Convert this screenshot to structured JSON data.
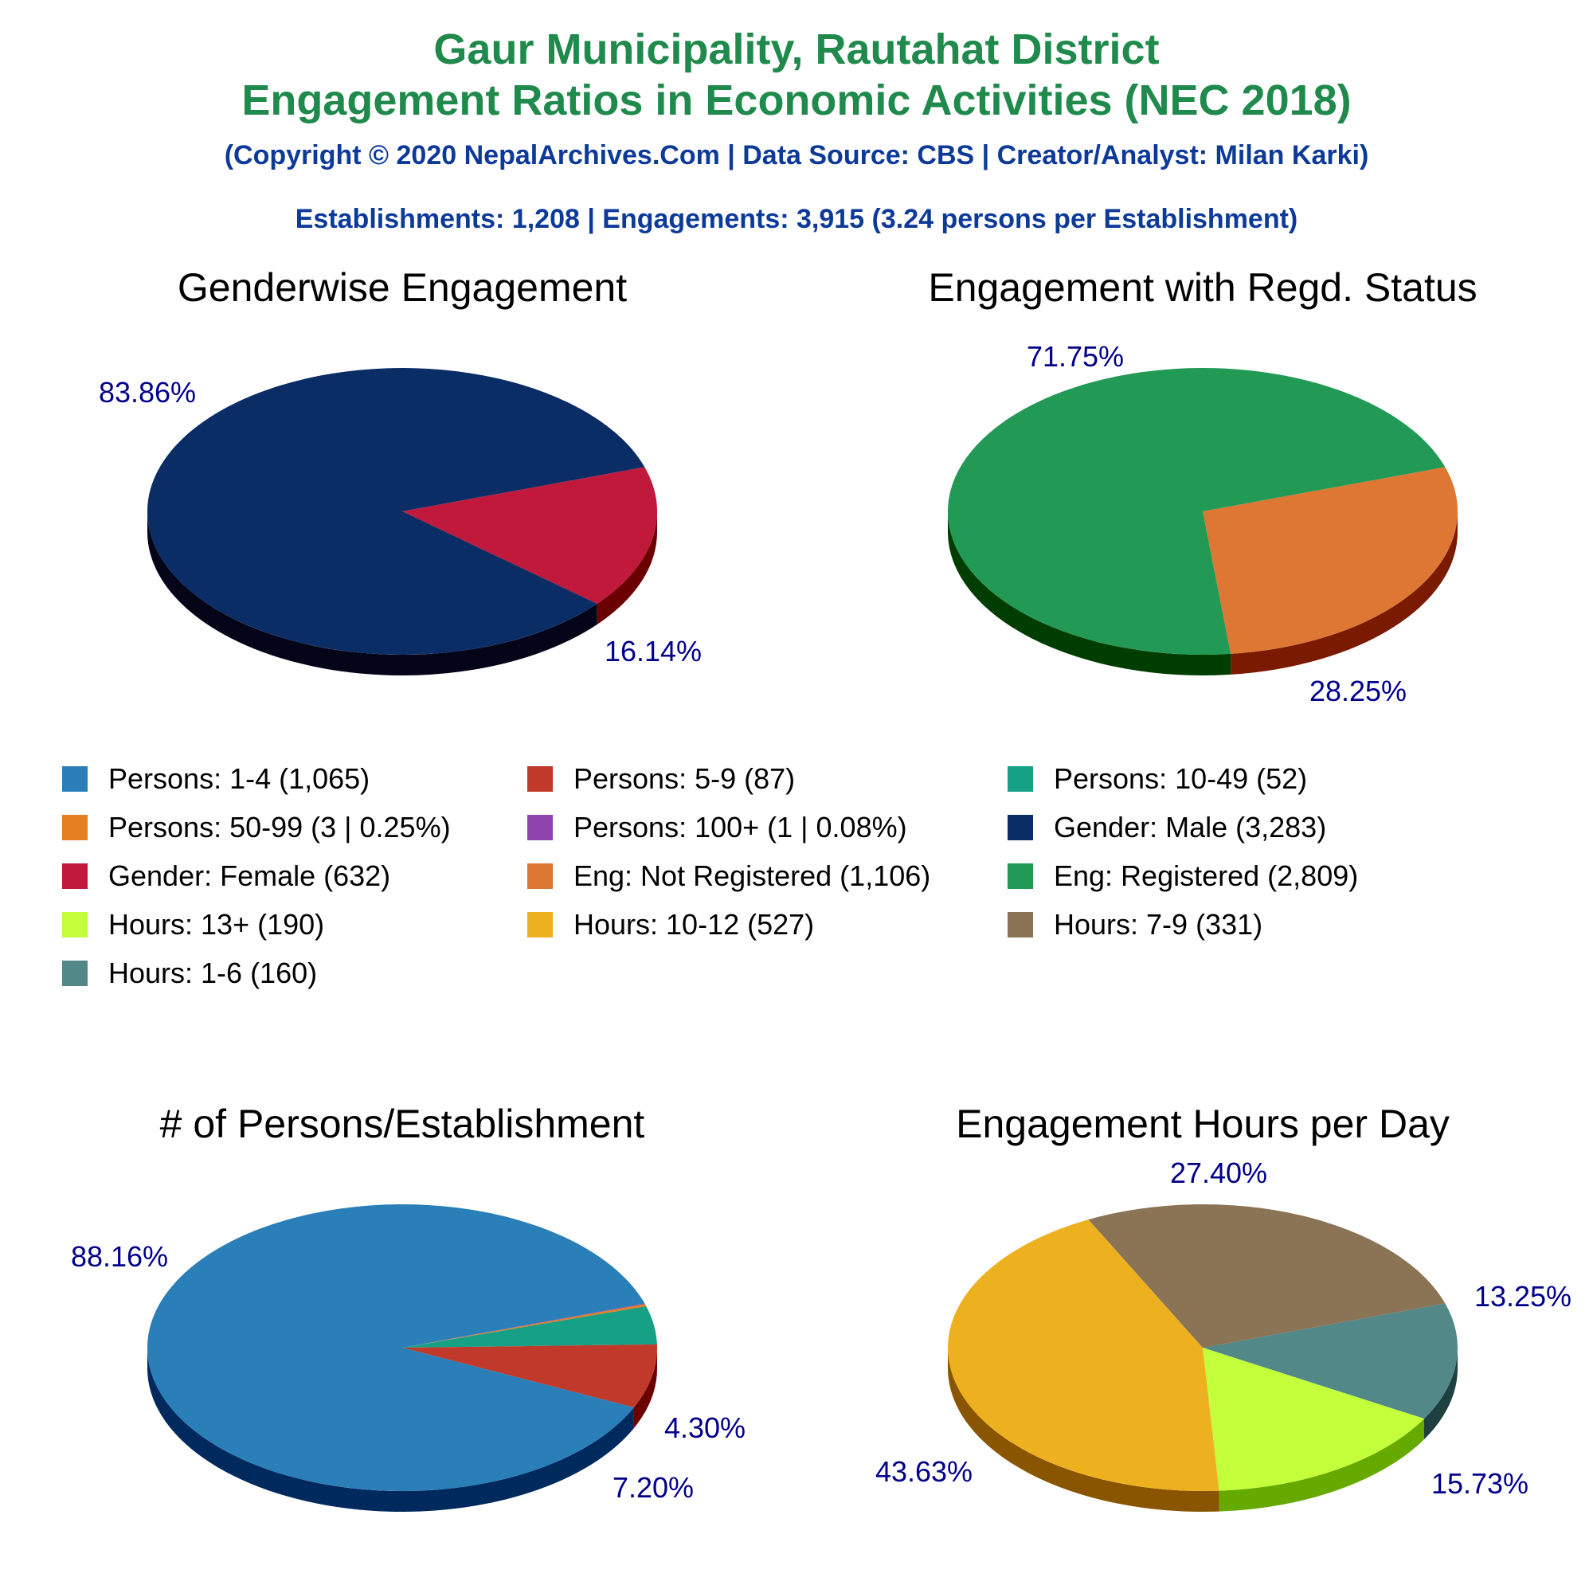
{
  "header": {
    "title_line1": "Gaur Municipality, Rautahat District",
    "title_line2": "Engagement Ratios in Economic Activities (NEC 2018)",
    "copyright": "(Copyright © 2020 NepalArchives.Com | Data Source: CBS | Creator/Analyst: Milan Karki)",
    "summary": "Establishments: 1,208 | Engagements: 3,915 (3.24 persons per Establishment)"
  },
  "colors": {
    "title": "#1f8a4c",
    "subtitle": "#0d3a99",
    "percent_label": "#00008b",
    "chart_title": "#000000",
    "legend_text": "#000000"
  },
  "legend": [
    {
      "label": "Persons: 1-4 (1,065)",
      "color": "#2a7fb8"
    },
    {
      "label": "Persons: 5-9 (87)",
      "color": "#c0392b"
    },
    {
      "label": "Persons: 10-49 (52)",
      "color": "#16a085"
    },
    {
      "label": "Persons: 50-99 (3 | 0.25%)",
      "color": "#e67e22"
    },
    {
      "label": "Persons: 100+ (1 | 0.08%)",
      "color": "#8e44ad"
    },
    {
      "label": "Gender: Male (3,283)",
      "color": "#0b2d66"
    },
    {
      "label": "Gender: Female (632)",
      "color": "#c0193c"
    },
    {
      "label": "Eng: Not Registered (1,106)",
      "color": "#dd7733"
    },
    {
      "label": "Eng: Registered (2,809)",
      "color": "#229955"
    },
    {
      "label": "Hours: 13+ (190)",
      "color": "#c3ff3b"
    },
    {
      "label": "Hours: 10-12 (527)",
      "color": "#edb120"
    },
    {
      "label": "Hours: 7-9 (331)",
      "color": "#8b7355"
    },
    {
      "label": "Hours: 1-6 (160)",
      "color": "#528888"
    }
  ],
  "chart_data": [
    {
      "type": "pie",
      "title": "Genderwise Engagement",
      "slices": [
        {
          "name": "Gender: Female",
          "value": 632,
          "percent_label": "16.14%",
          "color": "#c0193c",
          "side": "#6b0000"
        },
        {
          "name": "Gender: Male",
          "value": 3283,
          "percent_label": "83.86%",
          "color": "#0b2d66",
          "side": "#05051a"
        }
      ]
    },
    {
      "type": "pie",
      "title": "Engagement with Regd. Status",
      "slices": [
        {
          "name": "Eng: Not Registered",
          "value": 1106,
          "percent_label": "28.25%",
          "color": "#dd7733",
          "side": "#7a1a00"
        },
        {
          "name": "Eng: Registered",
          "value": 2809,
          "percent_label": "71.75%",
          "color": "#229955",
          "side": "#003d00"
        }
      ]
    },
    {
      "type": "pie",
      "title": "# of Persons/Establishment",
      "slices": [
        {
          "name": "Persons: 100+",
          "value": 1,
          "percent_label": "",
          "color": "#8e44ad",
          "side": "#3d0055"
        },
        {
          "name": "Persons: 50-99",
          "value": 3,
          "percent_label": "",
          "color": "#e67e22",
          "side": "#7a2a00"
        },
        {
          "name": "Persons: 10-49",
          "value": 52,
          "percent_label": "4.30%",
          "color": "#16a085",
          "side": "#00403a"
        },
        {
          "name": "Persons: 5-9",
          "value": 87,
          "percent_label": "7.20%",
          "color": "#c0392b",
          "side": "#6b0000"
        },
        {
          "name": "Persons: 1-4",
          "value": 1065,
          "percent_label": "88.16%",
          "color": "#2a7fb8",
          "side": "#002a5e"
        }
      ]
    },
    {
      "type": "pie",
      "title": "Engagement Hours per Day",
      "slices": [
        {
          "name": "Hours: 1-6",
          "value": 160,
          "percent_label": "13.25%",
          "color": "#528888",
          "side": "#1f4040"
        },
        {
          "name": "Hours: 13+",
          "value": 190,
          "percent_label": "15.73%",
          "color": "#c3ff3b",
          "side": "#66aa00"
        },
        {
          "name": "Hours: 10-12",
          "value": 527,
          "percent_label": "43.63%",
          "color": "#edb120",
          "side": "#8a5500"
        },
        {
          "name": "Hours: 7-9",
          "value": 331,
          "percent_label": "27.40%",
          "color": "#8b7355",
          "side": "#4a3a22"
        }
      ]
    }
  ]
}
